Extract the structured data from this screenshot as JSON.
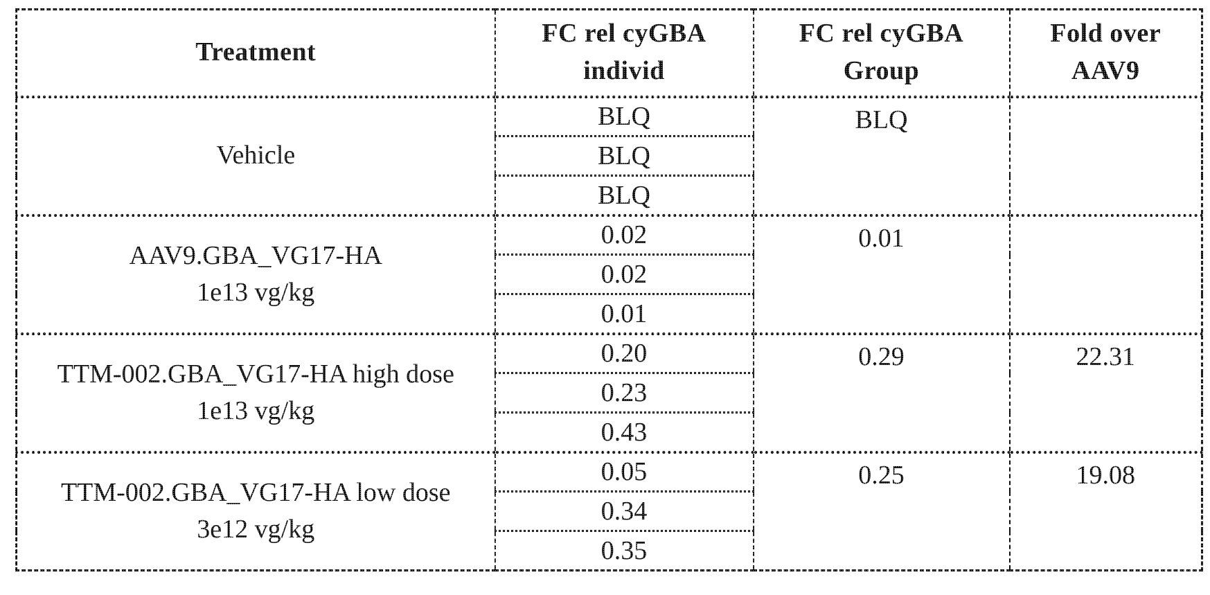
{
  "table": {
    "headers": {
      "treatment": "Treatment",
      "fc_individ": "FC rel cyGBA\nindivid",
      "fc_group": "FC rel cyGBA\nGroup",
      "fold_over": "Fold over\nAAV9"
    },
    "groups": [
      {
        "treatment": "Vehicle",
        "individ": [
          "BLQ",
          "BLQ",
          "BLQ"
        ],
        "group": "BLQ",
        "fold": ""
      },
      {
        "treatment": "AAV9.GBA_VG17-HA\n1e13 vg/kg",
        "individ": [
          "0.02",
          "0.02",
          "0.01"
        ],
        "group": "0.01",
        "fold": ""
      },
      {
        "treatment": "TTM-002.GBA_VG17-HA high dose\n1e13 vg/kg",
        "individ": [
          "0.20",
          "0.23",
          "0.43"
        ],
        "group": "0.29",
        "fold": "22.31"
      },
      {
        "treatment": "TTM-002.GBA_VG17-HA low dose\n3e12 vg/kg",
        "individ": [
          "0.05",
          "0.34",
          "0.35"
        ],
        "group": "0.25",
        "fold": "19.08"
      }
    ]
  }
}
